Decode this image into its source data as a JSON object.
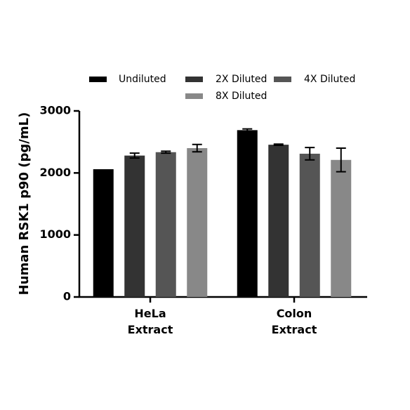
{
  "chart_data": {
    "type": "bar",
    "ylabel": "Human RSK1 p90 (pg/mL)",
    "categories": [
      "HeLa Extract",
      "Colon Extract"
    ],
    "series": [
      {
        "name": "Undiluted",
        "color": "#000000",
        "values": [
          2060,
          2690
        ],
        "errors": [
          0,
          20
        ]
      },
      {
        "name": "2X Diluted",
        "color": "#333333",
        "values": [
          2280,
          2455
        ],
        "errors": [
          40,
          10
        ]
      },
      {
        "name": "4X Diluted",
        "color": "#555555",
        "values": [
          2335,
          2310
        ],
        "errors": [
          15,
          100
        ]
      },
      {
        "name": "8X Diluted",
        "color": "#888888",
        "values": [
          2400,
          2210
        ],
        "errors": [
          60,
          190
        ]
      }
    ],
    "ylim": [
      0,
      3000
    ],
    "yticks": [
      0,
      1000,
      2000,
      3000
    ]
  }
}
